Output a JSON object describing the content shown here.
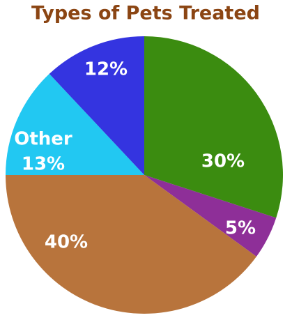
{
  "chart_data": {
    "type": "pie",
    "title": "Types of Pets Treated",
    "categories": [
      null,
      null,
      null,
      "Other",
      null
    ],
    "values": [
      30,
      5,
      40,
      13,
      12
    ],
    "value_labels": [
      "30%",
      "5%",
      "40%",
      "13%",
      "12%"
    ],
    "colors": [
      "#3b8c10",
      "#8e2f98",
      "#b8743c",
      "#22c8f2",
      "#3434e0"
    ],
    "start_angle": 0,
    "direction": "clockwise"
  }
}
